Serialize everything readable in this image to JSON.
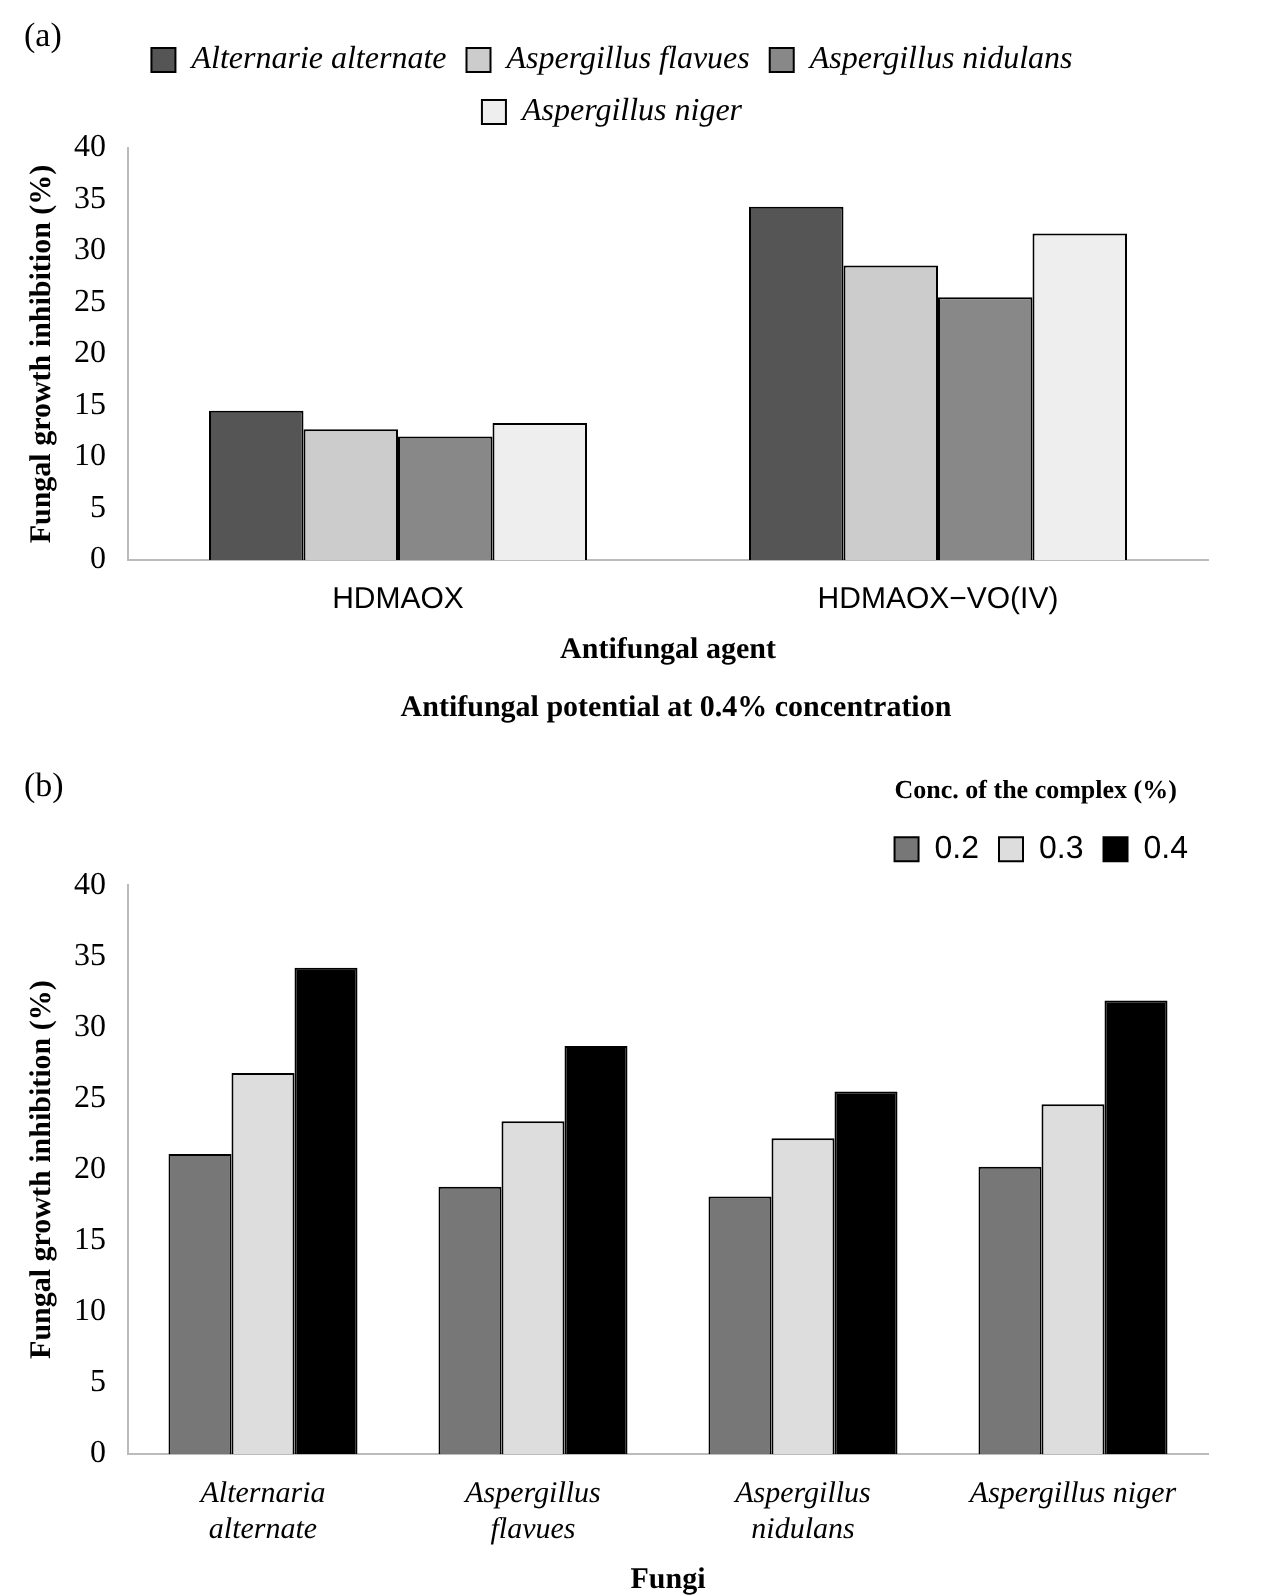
{
  "chart_data": [
    {
      "type": "bar",
      "categories": [
        "HDMAOX",
        "HDMAOX−VO(IV)"
      ],
      "xlabel": "Antifungal agent",
      "ylabel": "Fungal growth inhibition (%)",
      "ylim": [
        0,
        40
      ],
      "yticks": [
        0,
        5,
        10,
        15,
        20,
        25,
        30,
        35,
        40
      ],
      "grid": false,
      "legend": "top",
      "annotations": [
        "(a)",
        "Antifungal potential at 0.4% concentration"
      ],
      "series": [
        {
          "name": "Alternarie alternate",
          "color": "#555555",
          "values": [
            14.5,
            34.3
          ]
        },
        {
          "name": "Aspergillus flavues",
          "color": "#cccccc",
          "values": [
            12.7,
            28.6
          ]
        },
        {
          "name": "Aspergillus nidulans",
          "color": "#888888",
          "values": [
            12.0,
            25.5
          ]
        },
        {
          "name": "Aspergillus niger",
          "color": "#eeeeee",
          "values": [
            13.3,
            31.7
          ]
        }
      ]
    },
    {
      "type": "bar",
      "categories": [
        "Alternaria alternate",
        "Aspergillus flavues",
        "Aspergillus nidulans",
        "Aspergillus niger"
      ],
      "xlabel": "Fungi",
      "ylabel": "Fungal growth inhibition (%)",
      "legend_title": "Conc. of the complex (%)",
      "ylim": [
        0,
        40
      ],
      "yticks": [
        0,
        5,
        10,
        15,
        20,
        25,
        30,
        35,
        40
      ],
      "grid": false,
      "legend": "top right",
      "annotations": [
        "(b)"
      ],
      "series": [
        {
          "name": "0.2",
          "color": "#777777",
          "values": [
            21.1,
            18.8,
            18.1,
            20.2
          ]
        },
        {
          "name": "0.3",
          "color": "#dddddd",
          "values": [
            26.8,
            23.4,
            22.2,
            24.6
          ]
        },
        {
          "name": "0.4",
          "color": "#000000",
          "values": [
            34.2,
            28.7,
            25.5,
            31.9
          ]
        }
      ]
    }
  ]
}
